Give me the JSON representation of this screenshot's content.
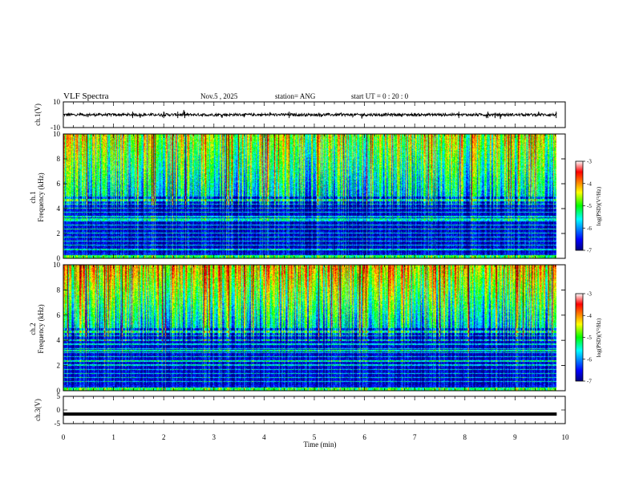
{
  "header": {
    "title": "VLF Spectra",
    "date": "Nov.5  , 2025",
    "station": "station= ANG",
    "start_time": "start  UT =   0  : 20 : 0"
  },
  "chart_data": [
    {
      "type": "line",
      "id": "ch1-waveform",
      "ylabel": "ch.1(V)",
      "ylim": [
        -10,
        10
      ],
      "yticks": [
        10,
        -10
      ],
      "series": [
        {
          "name": "ch.1",
          "baseline": 0,
          "amplitude": 1.5
        }
      ]
    },
    {
      "type": "heatmap",
      "id": "ch1-spectrogram",
      "ylabel_top": "ch.1",
      "ylabel": "Frequency (kHz)",
      "ylim": [
        0,
        10
      ],
      "yticks": [
        0,
        2,
        4,
        6,
        8,
        10
      ],
      "colorbar": {
        "label": "log(PSD)(V²/Hz)",
        "ticks": [
          -3,
          -4,
          -5,
          -6,
          -7
        ],
        "range": [
          -7,
          -3
        ]
      }
    },
    {
      "type": "heatmap",
      "id": "ch2-spectrogram",
      "ylabel_top": "ch.2",
      "ylabel": "Frequency (kHz)",
      "ylim": [
        0,
        10
      ],
      "yticks": [
        0,
        2,
        4,
        6,
        8,
        10
      ],
      "colorbar": {
        "label": "log(PSD)(V²/Hz)",
        "ticks": [
          -3,
          -4,
          -5,
          -6,
          -7
        ],
        "range": [
          -7,
          -3
        ]
      }
    },
    {
      "type": "line",
      "id": "ch3-waveform",
      "ylabel": "ch.3(V)",
      "ylim": [
        -5,
        5
      ],
      "yticks": [
        5,
        0,
        -5
      ],
      "series": [
        {
          "name": "ch.3",
          "baseline": -1.5,
          "amplitude": 0
        }
      ]
    }
  ],
  "xaxis": {
    "label": "Time (min)",
    "range": [
      0,
      10
    ],
    "ticks": [
      0,
      1,
      2,
      3,
      4,
      5,
      6,
      7,
      8,
      9,
      10
    ],
    "data_end": 9.83
  },
  "colors": {
    "colormap": [
      "#00007f",
      "#0000ff",
      "#00ffff",
      "#00ff00",
      "#ffff00",
      "#ff0000",
      "#7f0000"
    ],
    "axis": "#000000",
    "trace": "#000000"
  }
}
